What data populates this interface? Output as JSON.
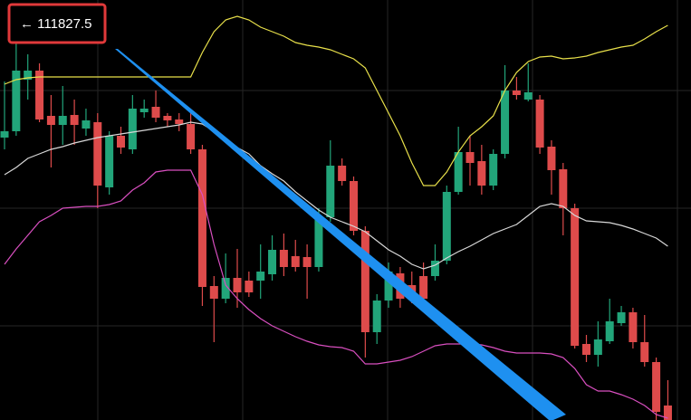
{
  "chart_data": {
    "type": "candlestick",
    "price_label": "← 111827.5",
    "up_color": "#22a57a",
    "down_color": "#de4b4b",
    "ylim": [
      0,
      464
    ],
    "grid": true,
    "open": [
      312,
      319,
      376,
      386,
      336,
      326,
      337,
      322,
      329,
      257,
      314,
      299,
      340,
      346,
      336,
      332,
      327,
      299,
      148,
      134,
      157,
      154,
      154,
      161,
      188,
      181,
      180,
      169,
      224,
      281,
      264,
      209,
      97,
      132,
      162,
      149,
      159,
      159,
      176,
      252,
      296,
      286,
      259,
      294,
      364,
      354,
      354,
      302,
      277,
      234,
      84,
      72,
      87,
      107,
      119,
      86,
      64,
      16
    ],
    "high": [
      374,
      419,
      404,
      394,
      359,
      369,
      354,
      344,
      339,
      319,
      324,
      359,
      354,
      364,
      339,
      339,
      339,
      304,
      159,
      184,
      189,
      164,
      194,
      204,
      206,
      199,
      194,
      234,
      309,
      289,
      269,
      214,
      139,
      174,
      169,
      164,
      174,
      194,
      259,
      324,
      314,
      304,
      299,
      392,
      379,
      394,
      359,
      309,
      284,
      239,
      94,
      109,
      134,
      126,
      124,
      116,
      69,
      44
    ],
    "low": [
      299,
      314,
      354,
      329,
      279,
      304,
      304,
      314,
      234,
      249,
      294,
      294,
      334,
      329,
      324,
      319,
      294,
      126,
      86,
      129,
      124,
      136,
      134,
      154,
      159,
      164,
      134,
      164,
      219,
      259,
      204,
      69,
      84,
      124,
      124,
      129,
      124,
      154,
      172,
      249,
      259,
      249,
      254,
      289,
      354,
      352,
      294,
      249,
      204,
      79,
      64,
      59,
      84,
      104,
      79,
      59,
      0,
      0
    ],
    "close": [
      319,
      386,
      386,
      332,
      326,
      336,
      326,
      331,
      259,
      314,
      301,
      344,
      344,
      334,
      331,
      327,
      299,
      147,
      134,
      157,
      141,
      141,
      164,
      188,
      169,
      169,
      169,
      224,
      281,
      264,
      209,
      97,
      132,
      164,
      134,
      134,
      134,
      176,
      252,
      296,
      284,
      259,
      294,
      364,
      359,
      362,
      301,
      276,
      234,
      82,
      72,
      89,
      109,
      119,
      86,
      64,
      9,
      0
    ],
    "series": [
      {
        "color": "#e8e04a",
        "values": [
          371,
          376,
          378,
          379,
          379,
          379,
          379,
          379,
          379,
          379,
          379,
          379,
          379,
          379,
          379,
          379,
          379,
          406,
          429,
          442,
          446,
          442,
          434,
          429,
          424,
          417,
          414,
          412,
          409,
          404,
          399,
          389,
          364,
          339,
          314,
          284,
          259,
          259,
          274,
          296,
          314,
          324,
          336,
          364,
          384,
          396,
          401,
          402,
          399,
          400,
          402,
          406,
          409,
          412,
          414,
          421,
          429,
          436
        ]
      },
      {
        "color": "#d8d8d8",
        "values": [
          271,
          279,
          289,
          294,
          299,
          302,
          306,
          309,
          312,
          314,
          316,
          318,
          320,
          322,
          324,
          326,
          329,
          327,
          319,
          311,
          301,
          294,
          281,
          272,
          264,
          252,
          242,
          232,
          224,
          219,
          214,
          208,
          198,
          188,
          181,
          172,
          167,
          171,
          179,
          186,
          192,
          199,
          206,
          211,
          216,
          226,
          236,
          239,
          236,
          226,
          220,
          219,
          218,
          215,
          211,
          206,
          201,
          192
        ]
      },
      {
        "color": "#d94fc0",
        "values": [
          172,
          189,
          204,
          219,
          226,
          234,
          235,
          236,
          236,
          238,
          242,
          254,
          262,
          274,
          276,
          276,
          276,
          249,
          194,
          149,
          134,
          122,
          112,
          104,
          98,
          92,
          87,
          83,
          81,
          80,
          76,
          62,
          62,
          64,
          66,
          70,
          76,
          82,
          84,
          84,
          84,
          83,
          80,
          76,
          74,
          74,
          74,
          73,
          69,
          57,
          39,
          32,
          32,
          28,
          23,
          16,
          6,
          2
        ]
      }
    ]
  }
}
